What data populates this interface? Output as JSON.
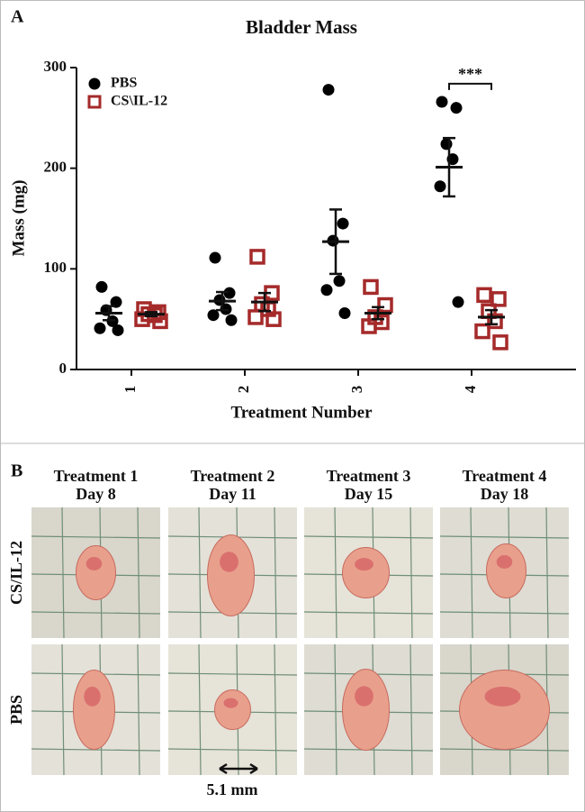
{
  "chart_data": {
    "type": "scatter",
    "panel_label": "A",
    "title": "Bladder Mass",
    "x_label": "Treatment Number",
    "y_label": "Mass (mg)",
    "categories": [
      "1",
      "2",
      "3",
      "4"
    ],
    "ylim": [
      0,
      300
    ],
    "yticks": [
      0,
      100,
      200,
      300
    ],
    "grid": false,
    "legend": "upper left",
    "series": [
      {
        "name": "PBS",
        "color": "#000000",
        "marker": "circle",
        "values": [
          [
            82,
            67,
            59,
            48,
            41,
            39
          ],
          [
            111,
            76,
            69,
            60,
            54,
            49
          ],
          [
            278,
            145,
            128,
            88,
            79,
            56
          ],
          [
            266,
            260,
            224,
            209,
            182,
            67
          ]
        ],
        "mean": [
          56,
          68,
          127,
          201
        ],
        "sem": [
          7,
          9,
          32,
          29
        ]
      },
      {
        "name": "CS\\IL-12",
        "color": "#a52a2a",
        "marker": "open-square",
        "values": [
          [
            60,
            57,
            55,
            54,
            50,
            48
          ],
          [
            112,
            76,
            65,
            60,
            52,
            50
          ],
          [
            82,
            64,
            52,
            47,
            43
          ],
          [
            74,
            70,
            58,
            48,
            38,
            27
          ]
        ],
        "mean": [
          55,
          67,
          56,
          52
        ],
        "sem": [
          2,
          9,
          6,
          7
        ]
      }
    ],
    "annotations": [
      {
        "text": "***",
        "category": "4",
        "y": 284
      }
    ]
  },
  "panel_b": {
    "label": "B",
    "columns": [
      {
        "line1": "Treatment 1",
        "line2": "Day 8"
      },
      {
        "line1": "Treatment 2",
        "line2": "Day 11"
      },
      {
        "line1": "Treatment 3",
        "line2": "Day 15"
      },
      {
        "line1": "Treatment 4",
        "line2": "Day 18"
      }
    ],
    "rows": [
      "CS/IL-12",
      "PBS"
    ],
    "scale_bar": "5.1 mm"
  }
}
